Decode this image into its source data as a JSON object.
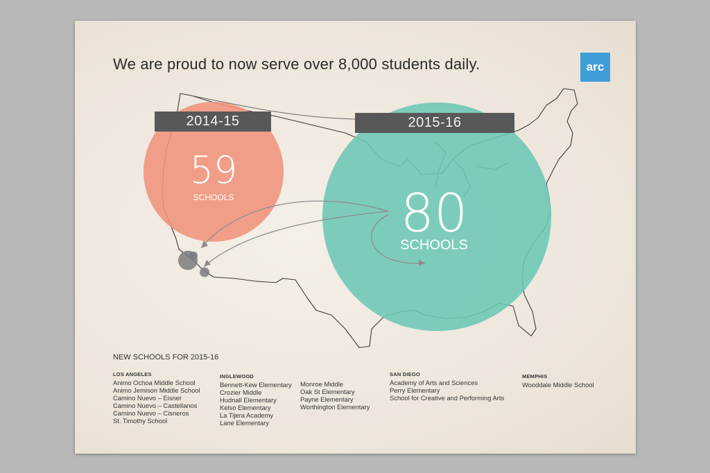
{
  "headline": "We are proud to now serve over 8,000 students daily.",
  "logo_text": "arc",
  "years": {
    "left": {
      "label": "2014-15",
      "number": "59",
      "unit": "SCHOOLS",
      "color": "#f0937c"
    },
    "right": {
      "label": "2015-16",
      "number": "80",
      "unit": "SCHOOLS",
      "color": "#6cc7b5"
    }
  },
  "new_schools": {
    "title": "NEW SCHOOLS FOR 2015-16",
    "los_angeles": {
      "city": "LOS ANGELES",
      "schools": [
        "Animo Ochoa Middle School",
        "Animo Jemison Middle School",
        "Camino Nuevo – Eisner",
        "Camino Nuevo – Castellanos",
        "Camino Nuevo – Cisneros",
        "St. Timothy School"
      ]
    },
    "inglewood": {
      "city": "INGLEWOOD",
      "schools": [
        "Bennett-Kew Elementary",
        "Crozier Middle",
        "Hudnall Elementary",
        "Kelso Elementary",
        "La Tijera Academy",
        "Lane Elementary"
      ]
    },
    "inglewood_2": {
      "schools": [
        "Monroe Middle",
        "Oak St Elementary",
        "Payne Elementary",
        "Worthington Elementary"
      ]
    },
    "san_diego": {
      "city": "SAN DIEGO",
      "schools": [
        "Academy of Arts and Sciences",
        "Perry Elementary",
        "School for Creative and Performing Arts"
      ]
    },
    "memphis": {
      "city": "MEMPHIS",
      "schools": [
        "Wooddale Middle School"
      ]
    }
  }
}
